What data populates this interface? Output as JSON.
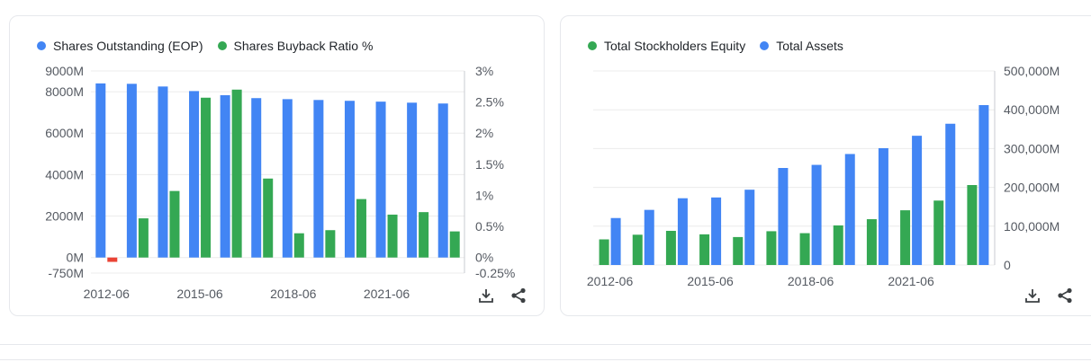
{
  "charts": {
    "left": {
      "legend": [
        {
          "label": "Shares Outstanding (EOP)",
          "color": "#4285f4"
        },
        {
          "label": "Shares Buyback Ratio %",
          "color": "#34a853"
        }
      ]
    },
    "right": {
      "legend": [
        {
          "label": "Total Stockholders Equity",
          "color": "#34a853"
        },
        {
          "label": "Total Assets",
          "color": "#4285f4"
        }
      ]
    }
  },
  "chart_data": [
    {
      "type": "bar",
      "x": [
        2012,
        2013,
        2014,
        2015,
        2016,
        2017,
        2018,
        2019,
        2020,
        2021,
        2022,
        2023
      ],
      "x_tick_labels": [
        "2012-06",
        "2015-06",
        "2018-06",
        "2021-06"
      ],
      "series": [
        {
          "name": "Shares Outstanding (EOP)",
          "axis": "left",
          "color": "#4285f4",
          "values": [
            8400,
            8380,
            8250,
            8030,
            7830,
            7690,
            7640,
            7600,
            7560,
            7520,
            7470,
            7430
          ]
        },
        {
          "name": "Shares Buyback Ratio %",
          "axis": "right",
          "color": "#34a853",
          "negative_color": "#ea4335",
          "values": [
            -0.07,
            0.63,
            1.07,
            2.57,
            2.7,
            1.27,
            0.39,
            0.44,
            0.94,
            0.69,
            0.73,
            0.42
          ]
        }
      ],
      "y_left": {
        "ylim": [
          -750,
          9000
        ],
        "tick_labels": [
          "9000M",
          "8000M",
          "6000M",
          "4000M",
          "2000M",
          "0M",
          "-750M"
        ],
        "tick_values": [
          9000,
          8000,
          6000,
          4000,
          2000,
          0,
          -750
        ]
      },
      "y_right": {
        "ylim": [
          -0.25,
          3
        ],
        "tick_labels": [
          "3%",
          "2.5%",
          "2%",
          "1.5%",
          "1%",
          "0.5%",
          "0%",
          "-0.25%"
        ],
        "tick_values": [
          3,
          2.5,
          2,
          1.5,
          1,
          0.5,
          0,
          -0.25
        ]
      },
      "grid": true
    },
    {
      "type": "bar",
      "x": [
        2012,
        2013,
        2014,
        2015,
        2016,
        2017,
        2018,
        2019,
        2020,
        2021,
        2022,
        2023
      ],
      "x_tick_labels": [
        "2012-06",
        "2015-06",
        "2018-06",
        "2021-06"
      ],
      "series": [
        {
          "name": "Total Stockholders Equity",
          "color": "#34a853",
          "values": [
            66000,
            78000,
            88000,
            79000,
            72000,
            87000,
            82000,
            102000,
            118000,
            141000,
            166000,
            206000
          ]
        },
        {
          "name": "Total Assets",
          "color": "#4285f4",
          "values": [
            121000,
            142000,
            172000,
            174000,
            194000,
            250000,
            258000,
            286000,
            301000,
            333000,
            364000,
            412000
          ]
        }
      ],
      "y_right": {
        "ylim": [
          0,
          500000
        ],
        "tick_labels": [
          "500,000M",
          "400,000M",
          "300,000M",
          "200,000M",
          "100,000M",
          "0"
        ],
        "tick_values": [
          500000,
          400000,
          300000,
          200000,
          100000,
          0
        ]
      },
      "grid": true
    }
  ]
}
